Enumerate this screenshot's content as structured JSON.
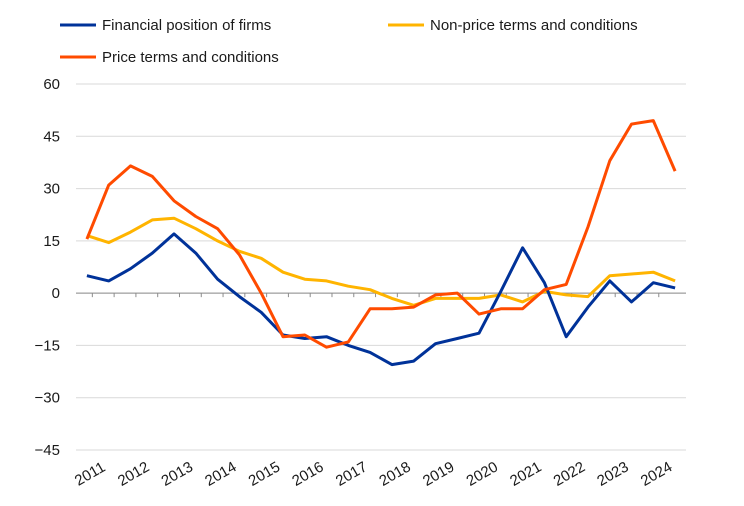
{
  "chart_data": {
    "type": "line",
    "title": "",
    "xlabel": "",
    "ylabel": "",
    "ylim": [
      -45,
      60
    ],
    "yticks": [
      60,
      45,
      30,
      15,
      0,
      -15,
      -30,
      -45
    ],
    "ytick_labels": [
      "60",
      "45",
      "30",
      "15",
      "0",
      "−15",
      "−30",
      "−45"
    ],
    "x_range": [
      2010.625,
      2024.625
    ],
    "xticks": [
      2011,
      2012,
      2013,
      2014,
      2015,
      2016,
      2017,
      2018,
      2019,
      2020,
      2021,
      2022,
      2023,
      2024
    ],
    "xtick_labels": [
      "2011",
      "2012",
      "2013",
      "2014",
      "2015",
      "2016",
      "2017",
      "2018",
      "2019",
      "2020",
      "2021",
      "2022",
      "2023",
      "2024"
    ],
    "legend_position": "top",
    "series": [
      {
        "name": "Financial position of firms",
        "color": "#003299",
        "values": [
          5,
          3.5,
          7,
          11.5,
          17,
          11.5,
          4,
          -1,
          -5.5,
          -12,
          -13,
          -12.5,
          -15,
          -17,
          -20.5,
          -19.5,
          -14.5,
          -13,
          -11.5,
          0.5,
          13,
          3,
          -12.5,
          -4,
          3.5,
          -2.5,
          3,
          1.5
        ]
      },
      {
        "name": "Non-price terms and conditions",
        "color": "#ffb400",
        "values": [
          16.5,
          14.5,
          17.5,
          21,
          21.5,
          18.5,
          15,
          12,
          10,
          6,
          4,
          3.5,
          2,
          1,
          -1.5,
          -3.5,
          -1.5,
          -1.5,
          -1.5,
          -0.5,
          -2.5,
          0.5,
          -0.5,
          -1,
          5,
          5.5,
          6,
          3.5
        ]
      },
      {
        "name": "Price terms and conditions",
        "color": "#ff4b00",
        "values": [
          15.5,
          31,
          36.5,
          33.5,
          26.5,
          22,
          18.5,
          11,
          0,
          -12.5,
          -12,
          -15.5,
          -14,
          -4.5,
          -4.5,
          -4,
          -0.5,
          0,
          -6,
          -4.5,
          -4.5,
          1,
          2.5,
          19,
          38,
          48.5,
          49.5,
          35
        ]
      }
    ]
  }
}
